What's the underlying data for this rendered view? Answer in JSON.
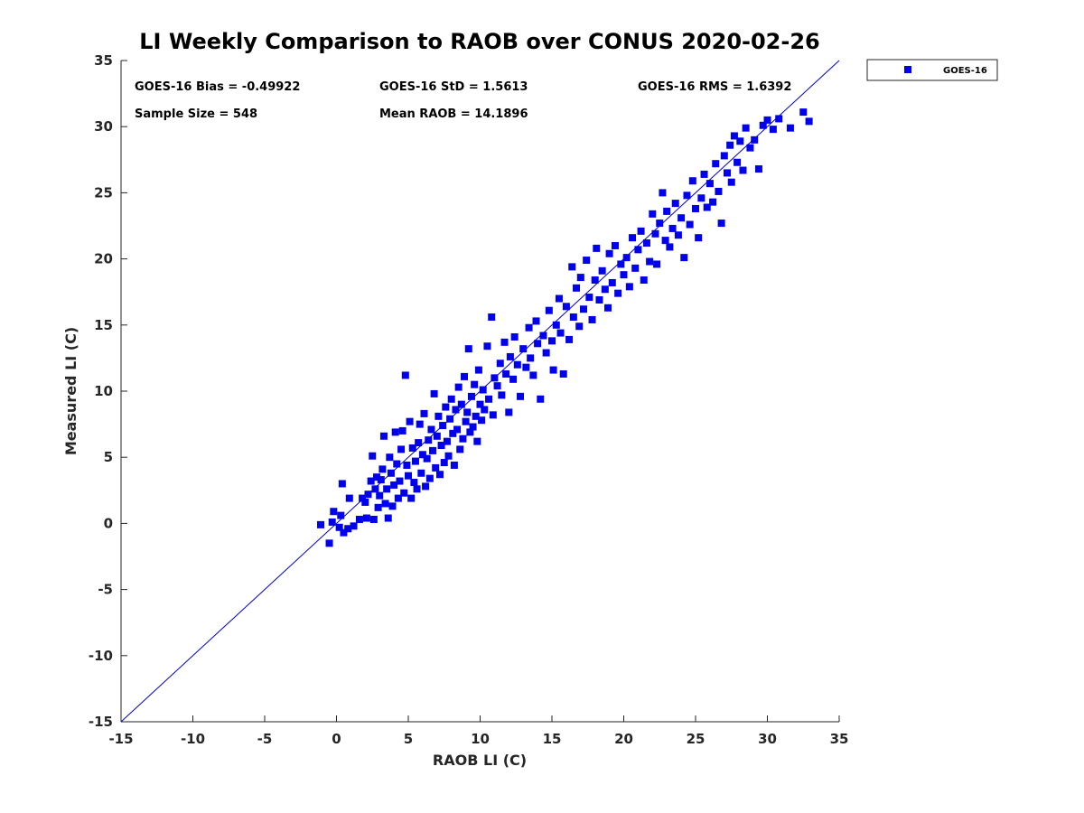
{
  "chart_data": {
    "type": "scatter",
    "title": "LI Weekly Comparison to RAOB over CONUS 2020-02-26",
    "xlabel": "RAOB LI (C)",
    "ylabel": "Measured LI (C)",
    "xlim": [
      -15,
      35
    ],
    "ylim": [
      -15,
      35
    ],
    "xticks": [
      -15,
      -10,
      -5,
      0,
      5,
      10,
      15,
      20,
      25,
      30,
      35
    ],
    "yticks": [
      -15,
      -10,
      -5,
      0,
      5,
      10,
      15,
      20,
      25,
      30,
      35
    ],
    "grid": false,
    "legend_position": "outside-top-right",
    "annotations": [
      "GOES-16 Bias = -0.49922",
      "GOES-16 StD = 1.5613",
      "GOES-16 RMS = 1.6392",
      "Sample Size = 548",
      "Mean RAOB = 14.1896"
    ],
    "reference_line": {
      "name": "1:1 line",
      "from": [
        -15,
        -15
      ],
      "to": [
        35,
        35
      ],
      "color": "#0000cc"
    },
    "series": [
      {
        "name": "GOES-16",
        "color": "#0000ee",
        "marker": "square",
        "points": [
          [
            -1.1,
            -0.1
          ],
          [
            -0.5,
            -1.5
          ],
          [
            -0.3,
            0.1
          ],
          [
            -0.2,
            0.9
          ],
          [
            0.2,
            -0.3
          ],
          [
            0.3,
            0.6
          ],
          [
            0.4,
            3.0
          ],
          [
            0.5,
            -0.7
          ],
          [
            0.8,
            -0.4
          ],
          [
            0.9,
            1.9
          ],
          [
            1.2,
            -0.2
          ],
          [
            1.6,
            0.3
          ],
          [
            1.8,
            1.9
          ],
          [
            2.0,
            1.6
          ],
          [
            2.1,
            0.4
          ],
          [
            2.2,
            2.2
          ],
          [
            2.4,
            3.2
          ],
          [
            2.5,
            5.1
          ],
          [
            2.6,
            0.3
          ],
          [
            2.7,
            2.6
          ],
          [
            2.8,
            3.5
          ],
          [
            2.9,
            1.2
          ],
          [
            3.0,
            2.1
          ],
          [
            3.1,
            3.3
          ],
          [
            3.2,
            4.1
          ],
          [
            3.3,
            6.6
          ],
          [
            3.4,
            1.5
          ],
          [
            3.5,
            2.6
          ],
          [
            3.6,
            0.4
          ],
          [
            3.7,
            5.0
          ],
          [
            3.8,
            3.8
          ],
          [
            3.9,
            1.3
          ],
          [
            4.0,
            2.9
          ],
          [
            4.1,
            6.9
          ],
          [
            4.2,
            4.5
          ],
          [
            4.3,
            1.9
          ],
          [
            4.4,
            3.2
          ],
          [
            4.5,
            5.6
          ],
          [
            4.6,
            7.0
          ],
          [
            4.7,
            2.3
          ],
          [
            4.8,
            11.2
          ],
          [
            4.9,
            4.4
          ],
          [
            5.0,
            3.6
          ],
          [
            5.1,
            7.7
          ],
          [
            5.2,
            1.9
          ],
          [
            5.3,
            5.7
          ],
          [
            5.4,
            3.1
          ],
          [
            5.5,
            4.7
          ],
          [
            5.6,
            2.6
          ],
          [
            5.7,
            6.1
          ],
          [
            5.8,
            7.5
          ],
          [
            5.9,
            3.8
          ],
          [
            6.0,
            5.2
          ],
          [
            6.1,
            8.3
          ],
          [
            6.2,
            2.8
          ],
          [
            6.3,
            4.9
          ],
          [
            6.4,
            6.3
          ],
          [
            6.5,
            3.4
          ],
          [
            6.6,
            7.1
          ],
          [
            6.7,
            5.5
          ],
          [
            6.8,
            9.8
          ],
          [
            6.9,
            4.2
          ],
          [
            7.0,
            6.6
          ],
          [
            7.1,
            8.1
          ],
          [
            7.2,
            3.7
          ],
          [
            7.3,
            5.9
          ],
          [
            7.4,
            7.4
          ],
          [
            7.5,
            4.6
          ],
          [
            7.6,
            8.8
          ],
          [
            7.7,
            6.2
          ],
          [
            7.8,
            5.1
          ],
          [
            7.9,
            7.9
          ],
          [
            8.0,
            9.4
          ],
          [
            8.1,
            6.8
          ],
          [
            8.2,
            4.4
          ],
          [
            8.3,
            8.6
          ],
          [
            8.4,
            7.1
          ],
          [
            8.5,
            10.3
          ],
          [
            8.6,
            5.6
          ],
          [
            8.7,
            9.0
          ],
          [
            8.8,
            6.4
          ],
          [
            8.9,
            11.1
          ],
          [
            9.0,
            7.7
          ],
          [
            9.1,
            8.4
          ],
          [
            9.2,
            13.2
          ],
          [
            9.3,
            6.9
          ],
          [
            9.4,
            9.6
          ],
          [
            9.5,
            7.3
          ],
          [
            9.6,
            10.5
          ],
          [
            9.7,
            8.1
          ],
          [
            9.8,
            6.2
          ],
          [
            9.9,
            11.6
          ],
          [
            10.0,
            9.0
          ],
          [
            10.1,
            7.8
          ],
          [
            10.2,
            10.1
          ],
          [
            10.3,
            8.6
          ],
          [
            10.5,
            13.4
          ],
          [
            10.6,
            9.4
          ],
          [
            10.8,
            15.6
          ],
          [
            10.9,
            8.2
          ],
          [
            11.0,
            11.0
          ],
          [
            11.2,
            10.4
          ],
          [
            11.4,
            12.1
          ],
          [
            11.5,
            9.7
          ],
          [
            11.7,
            13.7
          ],
          [
            11.8,
            11.3
          ],
          [
            12.0,
            8.4
          ],
          [
            12.1,
            12.6
          ],
          [
            12.3,
            10.9
          ],
          [
            12.4,
            14.1
          ],
          [
            12.6,
            12.0
          ],
          [
            12.8,
            9.6
          ],
          [
            13.0,
            13.2
          ],
          [
            13.2,
            11.8
          ],
          [
            13.4,
            14.8
          ],
          [
            13.5,
            12.5
          ],
          [
            13.7,
            11.2
          ],
          [
            13.9,
            15.3
          ],
          [
            14.0,
            13.6
          ],
          [
            14.2,
            9.4
          ],
          [
            14.4,
            14.2
          ],
          [
            14.6,
            12.9
          ],
          [
            14.8,
            16.1
          ],
          [
            15.0,
            13.8
          ],
          [
            15.1,
            11.6
          ],
          [
            15.3,
            15.0
          ],
          [
            15.5,
            17.0
          ],
          [
            15.6,
            14.4
          ],
          [
            15.8,
            11.3
          ],
          [
            16.0,
            16.4
          ],
          [
            16.2,
            13.9
          ],
          [
            16.4,
            19.4
          ],
          [
            16.5,
            15.6
          ],
          [
            16.7,
            17.8
          ],
          [
            16.9,
            14.9
          ],
          [
            17.0,
            18.6
          ],
          [
            17.2,
            16.2
          ],
          [
            17.4,
            19.9
          ],
          [
            17.6,
            17.1
          ],
          [
            17.8,
            15.4
          ],
          [
            18.0,
            18.4
          ],
          [
            18.1,
            20.8
          ],
          [
            18.3,
            16.9
          ],
          [
            18.5,
            19.1
          ],
          [
            18.7,
            17.7
          ],
          [
            18.9,
            16.3
          ],
          [
            19.0,
            20.4
          ],
          [
            19.2,
            18.2
          ],
          [
            19.4,
            21.0
          ],
          [
            19.6,
            17.4
          ],
          [
            19.8,
            19.6
          ],
          [
            20.0,
            18.8
          ],
          [
            20.2,
            20.1
          ],
          [
            20.4,
            17.9
          ],
          [
            20.6,
            21.6
          ],
          [
            20.8,
            19.3
          ],
          [
            21.0,
            20.7
          ],
          [
            21.2,
            22.1
          ],
          [
            21.4,
            18.4
          ],
          [
            21.6,
            21.2
          ],
          [
            21.8,
            19.8
          ],
          [
            22.0,
            23.4
          ],
          [
            22.2,
            21.9
          ],
          [
            22.3,
            19.6
          ],
          [
            22.5,
            22.7
          ],
          [
            22.7,
            25.0
          ],
          [
            22.9,
            21.4
          ],
          [
            23.0,
            23.6
          ],
          [
            23.2,
            20.9
          ],
          [
            23.4,
            22.3
          ],
          [
            23.6,
            24.2
          ],
          [
            23.8,
            21.8
          ],
          [
            24.0,
            23.1
          ],
          [
            24.2,
            20.1
          ],
          [
            24.4,
            24.8
          ],
          [
            24.6,
            22.6
          ],
          [
            24.8,
            25.9
          ],
          [
            25.0,
            23.8
          ],
          [
            25.2,
            21.6
          ],
          [
            25.4,
            24.6
          ],
          [
            25.6,
            26.4
          ],
          [
            25.8,
            23.9
          ],
          [
            26.0,
            25.7
          ],
          [
            26.2,
            24.3
          ],
          [
            26.4,
            27.2
          ],
          [
            26.6,
            25.1
          ],
          [
            26.8,
            22.7
          ],
          [
            27.0,
            27.8
          ],
          [
            27.2,
            26.5
          ],
          [
            27.4,
            28.6
          ],
          [
            27.5,
            25.8
          ],
          [
            27.7,
            29.3
          ],
          [
            27.9,
            27.3
          ],
          [
            28.1,
            28.9
          ],
          [
            28.3,
            26.7
          ],
          [
            28.5,
            29.9
          ],
          [
            28.8,
            28.4
          ],
          [
            29.1,
            29.0
          ],
          [
            29.4,
            26.8
          ],
          [
            29.7,
            30.1
          ],
          [
            30.0,
            30.5
          ],
          [
            30.4,
            29.8
          ],
          [
            30.8,
            30.6
          ],
          [
            31.6,
            29.9
          ],
          [
            32.5,
            31.1
          ],
          [
            32.9,
            30.4
          ]
        ]
      }
    ]
  }
}
